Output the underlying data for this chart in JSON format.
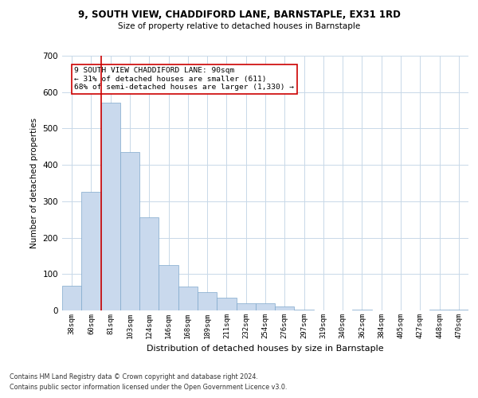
{
  "title1": "9, SOUTH VIEW, CHADDIFORD LANE, BARNSTAPLE, EX31 1RD",
  "title2": "Size of property relative to detached houses in Barnstaple",
  "xlabel": "Distribution of detached houses by size in Barnstaple",
  "ylabel": "Number of detached properties",
  "categories": [
    "38sqm",
    "60sqm",
    "81sqm",
    "103sqm",
    "124sqm",
    "146sqm",
    "168sqm",
    "189sqm",
    "211sqm",
    "232sqm",
    "254sqm",
    "276sqm",
    "297sqm",
    "319sqm",
    "340sqm",
    "362sqm",
    "384sqm",
    "405sqm",
    "427sqm",
    "448sqm",
    "470sqm"
  ],
  "values": [
    68,
    325,
    570,
    435,
    255,
    125,
    65,
    50,
    35,
    20,
    20,
    12,
    3,
    0,
    0,
    3,
    0,
    0,
    0,
    3,
    3
  ],
  "bar_color": "#c9d9ed",
  "bar_edge_color": "#7fa8cc",
  "grid_color": "#c8d8e8",
  "background_color": "#ffffff",
  "annotation_text": "9 SOUTH VIEW CHADDIFORD LANE: 90sqm\n← 31% of detached houses are smaller (611)\n68% of semi-detached houses are larger (1,330) →",
  "annotation_box_color": "#ffffff",
  "annotation_box_edge": "#cc0000",
  "property_line_color": "#cc0000",
  "property_line_x": 1.5,
  "footnote1": "Contains HM Land Registry data © Crown copyright and database right 2024.",
  "footnote2": "Contains public sector information licensed under the Open Government Licence v3.0.",
  "ylim": [
    0,
    700
  ],
  "yticks": [
    0,
    100,
    200,
    300,
    400,
    500,
    600,
    700
  ]
}
